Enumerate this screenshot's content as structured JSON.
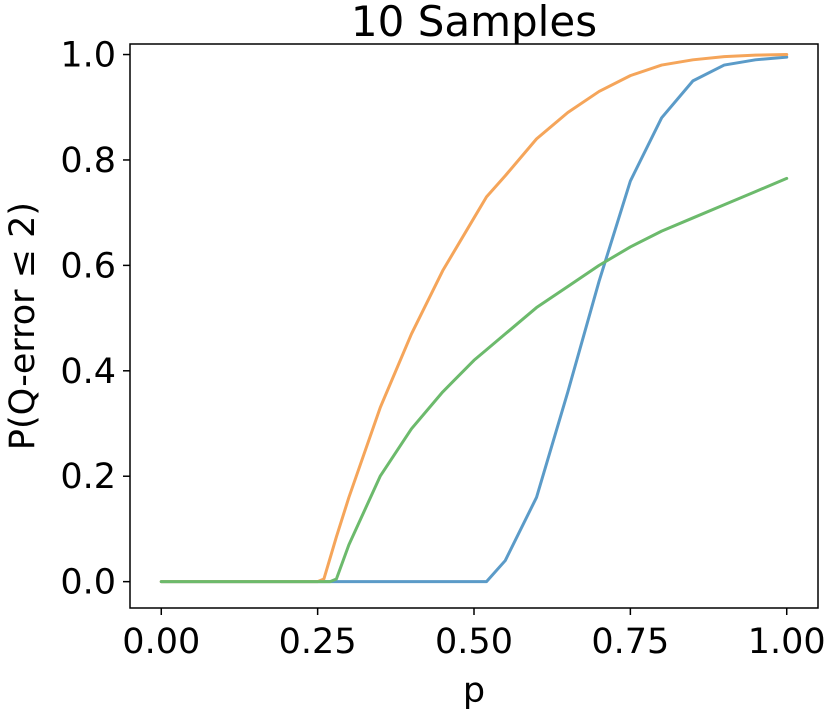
{
  "chart_data": {
    "type": "line",
    "title": "10 Samples",
    "xlabel": "p",
    "ylabel": "P(Q-error ≤ 2)",
    "xlim": [
      -0.05,
      1.05
    ],
    "ylim": [
      -0.05,
      1.02
    ],
    "xticks": [
      0.0,
      0.25,
      0.5,
      0.75,
      1.0
    ],
    "xtick_labels": [
      "0.00",
      "0.25",
      "0.50",
      "0.75",
      "1.00"
    ],
    "yticks": [
      0.0,
      0.2,
      0.4,
      0.6,
      0.8,
      1.0
    ],
    "ytick_labels": [
      "0.0",
      "0.2",
      "0.4",
      "0.6",
      "0.8",
      "1.0"
    ],
    "grid": false,
    "legend": "none",
    "x": [
      0.0,
      0.05,
      0.1,
      0.15,
      0.2,
      0.25,
      0.26,
      0.27,
      0.28,
      0.3,
      0.35,
      0.4,
      0.45,
      0.5,
      0.52,
      0.55,
      0.6,
      0.65,
      0.7,
      0.75,
      0.8,
      0.85,
      0.9,
      0.95,
      1.0
    ],
    "series": [
      {
        "color": "#5b9bc8",
        "values": [
          0,
          0,
          0,
          0,
          0,
          0,
          0,
          0,
          0,
          0,
          0,
          0,
          0,
          0,
          0,
          0.04,
          0.16,
          0.36,
          0.57,
          0.76,
          0.88,
          0.95,
          0.98,
          0.99,
          0.995
        ]
      },
      {
        "color": "#f5a55a",
        "values": [
          0,
          0,
          0,
          0,
          0,
          0,
          0.005,
          0.045,
          0.085,
          0.16,
          0.33,
          0.47,
          0.59,
          0.69,
          0.73,
          0.77,
          0.84,
          0.89,
          0.93,
          0.96,
          0.98,
          0.99,
          0.996,
          0.999,
          1.0
        ]
      },
      {
        "color": "#6cba6c",
        "values": [
          0,
          0,
          0,
          0,
          0,
          0,
          0,
          0,
          0.005,
          0.07,
          0.2,
          0.29,
          0.36,
          0.42,
          0.44,
          0.47,
          0.52,
          0.56,
          0.6,
          0.635,
          0.665,
          0.69,
          0.715,
          0.74,
          0.765
        ]
      }
    ]
  }
}
